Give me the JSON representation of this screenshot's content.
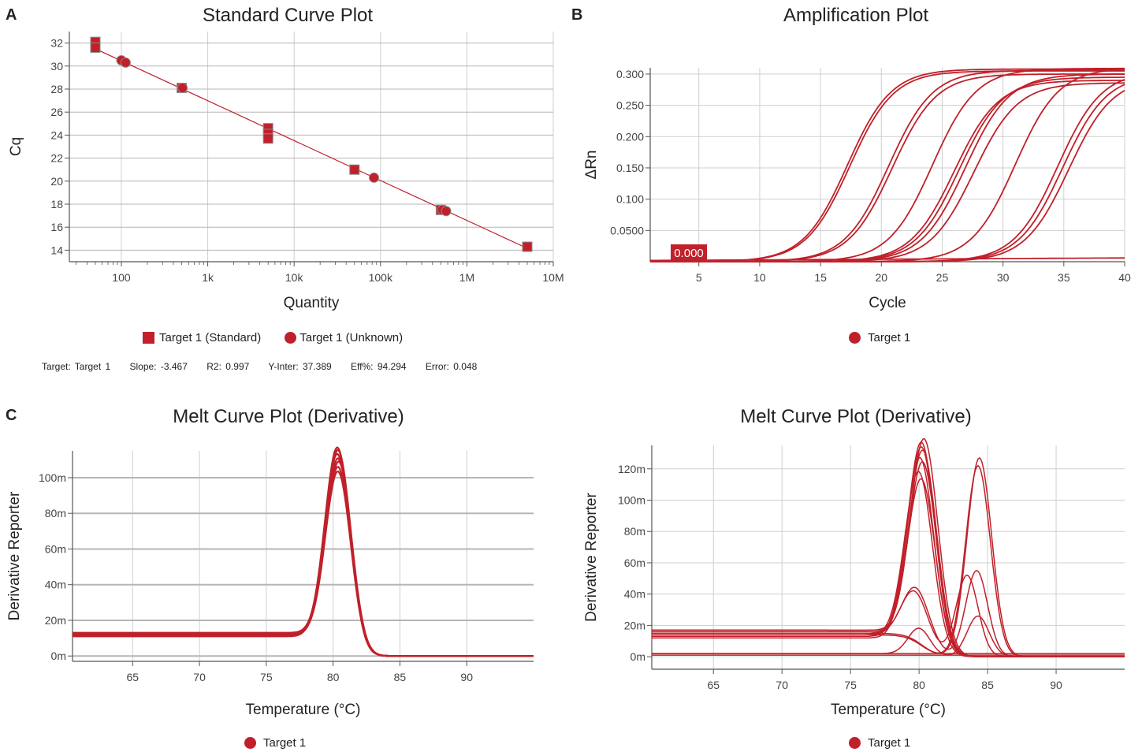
{
  "panels": {
    "a": {
      "letter": "A",
      "title": "Standard Curve Plot"
    },
    "b": {
      "letter": "B",
      "title": "Amplification Plot"
    },
    "c": {
      "letter": "C",
      "title": "Melt Curve Plot (Derivative)"
    },
    "d": {
      "title": "Melt Curve Plot (Derivative)"
    }
  },
  "legends": {
    "a_standard": "Target 1 (Standard)",
    "a_unknown": "Target 1 (Unknown)",
    "b": "Target 1",
    "c": "Target 1",
    "d": "Target 1"
  },
  "stats": {
    "target": "Target: Target 1",
    "slope": "Slope: -3.467",
    "r2": "R2: 0.997",
    "yinter": "Y-Inter: 37.389",
    "eff": "Eff%: 94.294",
    "error": "Error: 0.048"
  },
  "colors": {
    "series": "#c0202a",
    "grid": "#cfcfcf",
    "axis": "#555555"
  },
  "chart_data": [
    {
      "type": "scatter",
      "title": "Standard Curve Plot",
      "xlabel": "Quantity",
      "ylabel": "Cq",
      "xscale": "log",
      "xlim": [
        25,
        10000000
      ],
      "ylim": [
        13,
        33
      ],
      "xticks": [
        {
          "v": 100,
          "l": "100"
        },
        {
          "v": 1000,
          "l": "1k"
        },
        {
          "v": 10000,
          "l": "10k"
        },
        {
          "v": 100000,
          "l": "100k"
        },
        {
          "v": 1000000,
          "l": "1M"
        },
        {
          "v": 10000000,
          "l": "10M"
        }
      ],
      "yticks": [
        14,
        16,
        18,
        20,
        22,
        24,
        26,
        28,
        30,
        32
      ],
      "fit": {
        "slope": -3.467,
        "intercept": 37.389
      },
      "series": [
        {
          "name": "Target 1 (Standard)",
          "marker": "square",
          "points": [
            [
              50,
              32.1
            ],
            [
              50,
              31.6
            ],
            [
              500,
              28.1
            ],
            [
              5000,
              24.6
            ],
            [
              5000,
              24.1
            ],
            [
              5000,
              23.7
            ],
            [
              50000,
              21.0
            ],
            [
              500000,
              17.5
            ],
            [
              5000000,
              14.3
            ]
          ]
        },
        {
          "name": "Target 1 (Unknown)",
          "marker": "circle",
          "points": [
            [
              100,
              30.5
            ],
            [
              112,
              30.3
            ],
            [
              510,
              28.1
            ],
            [
              84000,
              20.3
            ],
            [
              520000,
              17.5
            ],
            [
              575000,
              17.4
            ]
          ]
        }
      ]
    },
    {
      "type": "line",
      "title": "Amplification Plot",
      "xlabel": "Cycle",
      "ylabel": "ΔRn",
      "xlim": [
        1,
        40
      ],
      "ylim": [
        0,
        0.31
      ],
      "xticks": [
        5,
        10,
        15,
        20,
        25,
        30,
        35,
        40
      ],
      "yticks": [
        {
          "v": 0.05,
          "l": "0.0500"
        },
        {
          "v": 0.1,
          "l": "0.100"
        },
        {
          "v": 0.15,
          "l": "0.150"
        },
        {
          "v": 0.2,
          "l": "0.200"
        },
        {
          "v": 0.25,
          "l": "0.250"
        },
        {
          "v": 0.3,
          "l": "0.300"
        }
      ],
      "threshold_label": "0.000",
      "series": [
        {
          "name": "Target 1",
          "curves": [
            {
              "mid": 17.2,
              "plateau": 0.308,
              "slope": 1.8
            },
            {
              "mid": 17.4,
              "plateau": 0.305,
              "slope": 1.8
            },
            {
              "mid": 20.6,
              "plateau": 0.306,
              "slope": 1.8
            },
            {
              "mid": 20.9,
              "plateau": 0.3,
              "slope": 1.8
            },
            {
              "mid": 24.2,
              "plateau": 0.309,
              "slope": 1.8
            },
            {
              "mid": 26.0,
              "plateau": 0.29,
              "slope": 1.8
            },
            {
              "mid": 26.4,
              "plateau": 0.295,
              "slope": 1.8
            },
            {
              "mid": 26.9,
              "plateau": 0.3,
              "slope": 1.8
            },
            {
              "mid": 27.6,
              "plateau": 0.286,
              "slope": 1.8
            },
            {
              "mid": 31.0,
              "plateau": 0.31,
              "slope": 1.8
            },
            {
              "mid": 34.5,
              "plateau": 0.305,
              "slope": 1.8
            },
            {
              "mid": 34.9,
              "plateau": 0.3,
              "slope": 1.8
            },
            {
              "mid": 35.4,
              "plateau": 0.295,
              "slope": 1.8
            },
            {
              "mid": 50,
              "plateau": 0.004,
              "slope": 10,
              "flat": true
            }
          ]
        }
      ]
    },
    {
      "type": "line",
      "title": "Melt Curve Plot (Derivative)",
      "xlabel": "Temperature (°C)",
      "ylabel": "Derivative Reporter",
      "xlim": [
        60.5,
        95
      ],
      "ylim": [
        -3,
        115
      ],
      "xticks": [
        65,
        70,
        75,
        80,
        85,
        90
      ],
      "yticks": [
        {
          "v": 0,
          "l": "0m"
        },
        {
          "v": 20,
          "l": "20m"
        },
        {
          "v": 40,
          "l": "40m"
        },
        {
          "v": 60,
          "l": "60m"
        },
        {
          "v": 80,
          "l": "80m"
        },
        {
          "v": 100,
          "l": "100m"
        }
      ],
      "series": [
        {
          "name": "Target 1",
          "curves": [
            {
              "base": 13,
              "peaks": [
                [
                  80.4,
                  98,
                  0.95
                ]
              ]
            },
            {
              "base": 12,
              "peaks": [
                [
                  80.4,
                  101,
                  0.95
                ]
              ]
            },
            {
              "base": 12.5,
              "peaks": [
                [
                  80.45,
                  104,
                  0.95
                ]
              ]
            },
            {
              "base": 11.5,
              "peaks": [
                [
                  80.4,
                  106,
                  0.95
                ]
              ]
            },
            {
              "base": 12,
              "peaks": [
                [
                  80.35,
                  108,
                  0.95
                ]
              ]
            },
            {
              "base": 13,
              "peaks": [
                [
                  80.4,
                  110,
                  0.95
                ]
              ]
            },
            {
              "base": 11,
              "peaks": [
                [
                  80.35,
                  112,
                  0.95
                ]
              ]
            }
          ]
        }
      ]
    },
    {
      "type": "line",
      "title": "Melt Curve Plot (Derivative)",
      "xlabel": "Temperature (°C)",
      "ylabel": "Derivative Reporter",
      "xlim": [
        60.5,
        95
      ],
      "ylim": [
        -8,
        135
      ],
      "xticks": [
        65,
        70,
        75,
        80,
        85,
        90
      ],
      "yticks": [
        {
          "v": 0,
          "l": "0m"
        },
        {
          "v": 20,
          "l": "20m"
        },
        {
          "v": 40,
          "l": "40m"
        },
        {
          "v": 60,
          "l": "60m"
        },
        {
          "v": 80,
          "l": "80m"
        },
        {
          "v": 100,
          "l": "100m"
        },
        {
          "v": 120,
          "l": "120m"
        }
      ],
      "series": [
        {
          "name": "Target 1",
          "curves": [
            {
              "base": 14,
              "peaks": [
                [
                  80.2,
                  130,
                  1.0
                ]
              ]
            },
            {
              "base": 15,
              "peaks": [
                [
                  80.3,
                  125,
                  1.0
                ]
              ]
            },
            {
              "base": 13,
              "peaks": [
                [
                  80.1,
                  120,
                  1.0
                ]
              ]
            },
            {
              "base": 16,
              "peaks": [
                [
                  80.3,
                  117,
                  1.0
                ]
              ]
            },
            {
              "base": 14,
              "peaks": [
                [
                  80.0,
                  110,
                  1.0
                ]
              ]
            },
            {
              "base": 15,
              "peaks": [
                [
                  80.2,
                  106,
                  1.0
                ]
              ]
            },
            {
              "base": 17,
              "peaks": [
                [
                  80.4,
                  132,
                  1.0
                ]
              ]
            },
            {
              "base": 12,
              "peaks": [
                [
                  80.2,
                  128,
                  1.0
                ]
              ]
            },
            {
              "base": 15,
              "peaks": [
                [
                  84.4,
                  127,
                  0.9
                ]
              ]
            },
            {
              "base": 14,
              "peaks": [
                [
                  84.3,
                  122,
                  0.9
                ]
              ]
            },
            {
              "base": 15,
              "peaks": [
                [
                  79.8,
                  34,
                  1.0
                ],
                [
                  84.2,
                  55,
                  0.8
                ]
              ]
            },
            {
              "base": 14,
              "peaks": [
                [
                  79.7,
                  32,
                  1.0
                ],
                [
                  83.5,
                  52,
                  0.8
                ]
              ]
            },
            {
              "base": 2,
              "peaks": [
                [
                  80.0,
                  17,
                  0.8
                ],
                [
                  84.3,
                  26,
                  0.8
                ]
              ]
            },
            {
              "base": 2,
              "peaks": []
            },
            {
              "base": 1,
              "peaks": []
            }
          ]
        }
      ]
    }
  ]
}
